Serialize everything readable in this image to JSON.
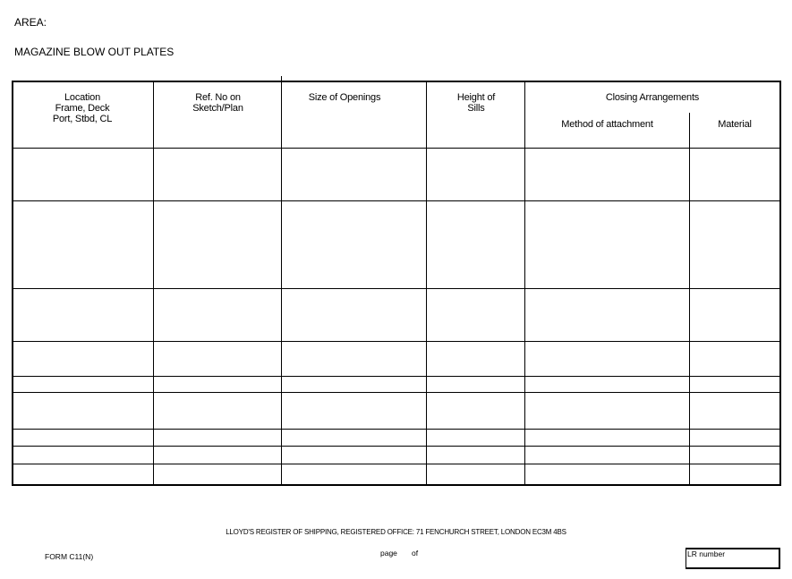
{
  "header": {
    "area_label": "AREA:",
    "title": "MAGAZINE BLOW OUT PLATES"
  },
  "table": {
    "columns": {
      "location": [
        "Location",
        "Frame, Deck",
        "Port, Stbd, CL"
      ],
      "ref_no": [
        "Ref. No on",
        "Sketch/Plan"
      ],
      "size": "Size of Openings",
      "height": [
        "Height of",
        "Sills"
      ],
      "closing": "Closing Arrangements",
      "method": "Method of attachment",
      "material": "Material"
    }
  },
  "footer": {
    "office": "LLOYD'S REGISTER OF SHIPPING, REGISTERED OFFICE: 71 FENCHURCH STREET, LONDON EC3M 4BS",
    "form": "FORM C11(N)",
    "page": "page",
    "of": "of",
    "lr_number": "LR number"
  }
}
